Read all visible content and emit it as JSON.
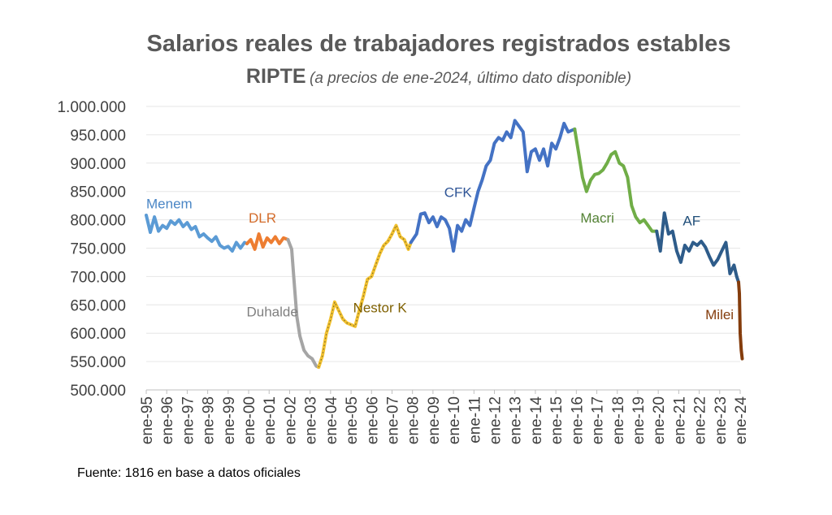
{
  "chart_data": {
    "type": "line",
    "title": "Salarios reales de trabajadores registrados estables",
    "subtitle_main": "RIPTE",
    "subtitle_note": "(a precios de ene-2024, último dato disponible)",
    "source": "Fuente: 1816 en base a datos oficiales",
    "ylim": [
      500000,
      1000000
    ],
    "y_ticks": [
      "1.000.000",
      "950.000",
      "900.000",
      "850.000",
      "800.000",
      "750.000",
      "700.000",
      "650.000",
      "600.000",
      "550.000",
      "500.000"
    ],
    "x_ticks": [
      "ene-95",
      "ene-96",
      "ene-97",
      "ene-98",
      "ene-99",
      "ene-00",
      "ene-01",
      "ene-02",
      "ene-03",
      "ene-04",
      "ene-05",
      "ene-06",
      "ene-07",
      "ene-08",
      "ene-09",
      "ene-10",
      "ene-11",
      "ene-12",
      "ene-13",
      "ene-14",
      "ene-15",
      "ene-16",
      "ene-17",
      "ene-18",
      "ene-19",
      "ene-20",
      "ene-21",
      "ene-22",
      "ene-23",
      "ene-24"
    ],
    "x_start_year": 1995,
    "series": [
      {
        "name": "Menem",
        "color": "#5B9BD5",
        "label_color": "#4A86C5",
        "x": [
          1995.0,
          1995.2,
          1995.4,
          1995.6,
          1995.8,
          1996.0,
          1996.2,
          1996.4,
          1996.6,
          1996.8,
          1997.0,
          1997.2,
          1997.4,
          1997.6,
          1997.8,
          1998.0,
          1998.2,
          1998.4,
          1998.6,
          1998.8,
          1999.0,
          1999.2,
          1999.4,
          1999.6,
          1999.8,
          1999.92
        ],
        "y": [
          808000,
          778000,
          805000,
          780000,
          790000,
          785000,
          798000,
          792000,
          800000,
          788000,
          795000,
          783000,
          788000,
          770000,
          775000,
          768000,
          762000,
          770000,
          755000,
          750000,
          753000,
          745000,
          760000,
          750000,
          760000,
          758000
        ]
      },
      {
        "name": "DLR",
        "color": "#ED7D31",
        "label_color": "#D36B2A",
        "x": [
          1999.92,
          2000.1,
          2000.3,
          2000.5,
          2000.7,
          2000.9,
          2001.1,
          2001.3,
          2001.5,
          2001.7,
          2001.92
        ],
        "y": [
          758000,
          765000,
          748000,
          775000,
          752000,
          768000,
          760000,
          770000,
          758000,
          768000,
          765000
        ]
      },
      {
        "name": "Duhalde",
        "color": "#A5A5A5",
        "label_color": "#808080",
        "x": [
          2001.92,
          2002.1,
          2002.2,
          2002.35,
          2002.5,
          2002.7,
          2002.9,
          2003.1,
          2003.3,
          2003.42
        ],
        "y": [
          765000,
          748000,
          700000,
          630000,
          595000,
          570000,
          560000,
          555000,
          542000,
          540000
        ]
      },
      {
        "name": "Nestor K",
        "color": "#F2C12E",
        "label_color": "#7F6000",
        "dotted": true,
        "x": [
          2003.42,
          2003.6,
          2003.8,
          2004.0,
          2004.2,
          2004.4,
          2004.6,
          2004.8,
          2005.0,
          2005.2,
          2005.4,
          2005.6,
          2005.8,
          2006.0,
          2006.2,
          2006.4,
          2006.6,
          2006.8,
          2007.0,
          2007.2,
          2007.4,
          2007.6,
          2007.8,
          2007.92
        ],
        "y": [
          540000,
          560000,
          600000,
          625000,
          655000,
          640000,
          625000,
          618000,
          615000,
          612000,
          640000,
          665000,
          695000,
          700000,
          720000,
          740000,
          755000,
          762000,
          775000,
          790000,
          770000,
          765000,
          748000,
          760000
        ]
      },
      {
        "name": "CFK",
        "color": "#4472C4",
        "label_color": "#2F5597",
        "x": [
          2007.92,
          2008.2,
          2008.4,
          2008.6,
          2008.8,
          2009.0,
          2009.2,
          2009.4,
          2009.6,
          2009.8,
          2010.0,
          2010.2,
          2010.4,
          2010.6,
          2010.8,
          2011.0,
          2011.2,
          2011.4,
          2011.6,
          2011.8,
          2012.0,
          2012.2,
          2012.4,
          2012.6,
          2012.8,
          2013.0,
          2013.2,
          2013.4,
          2013.6,
          2013.8,
          2014.0,
          2014.2,
          2014.4,
          2014.6,
          2014.8,
          2015.0,
          2015.2,
          2015.4,
          2015.6,
          2015.92
        ],
        "y": [
          760000,
          775000,
          810000,
          812000,
          795000,
          805000,
          788000,
          805000,
          800000,
          785000,
          745000,
          790000,
          780000,
          800000,
          790000,
          820000,
          850000,
          870000,
          895000,
          905000,
          935000,
          945000,
          940000,
          955000,
          945000,
          975000,
          965000,
          955000,
          885000,
          920000,
          925000,
          905000,
          925000,
          895000,
          935000,
          925000,
          945000,
          970000,
          955000,
          960000
        ]
      },
      {
        "name": "Macri",
        "color": "#70AD47",
        "label_color": "#548235",
        "x": [
          2015.92,
          2016.1,
          2016.3,
          2016.5,
          2016.7,
          2016.9,
          2017.1,
          2017.3,
          2017.5,
          2017.7,
          2017.9,
          2018.1,
          2018.3,
          2018.5,
          2018.7,
          2018.9,
          2019.1,
          2019.3,
          2019.5,
          2019.7,
          2019.92
        ],
        "y": [
          960000,
          920000,
          875000,
          850000,
          870000,
          880000,
          882000,
          888000,
          900000,
          915000,
          920000,
          900000,
          895000,
          875000,
          825000,
          805000,
          795000,
          800000,
          790000,
          780000,
          780000
        ]
      },
      {
        "name": "AF",
        "color": "#2E5C8A",
        "label_color": "#1F4E79",
        "x": [
          2019.92,
          2020.1,
          2020.3,
          2020.5,
          2020.7,
          2020.9,
          2021.1,
          2021.3,
          2021.5,
          2021.7,
          2021.9,
          2022.1,
          2022.3,
          2022.5,
          2022.7,
          2022.9,
          2023.1,
          2023.3,
          2023.5,
          2023.7,
          2023.83,
          2023.92
        ],
        "y": [
          780000,
          745000,
          812000,
          775000,
          780000,
          745000,
          725000,
          755000,
          745000,
          760000,
          755000,
          762000,
          752000,
          735000,
          720000,
          730000,
          745000,
          760000,
          705000,
          720000,
          700000,
          690000
        ]
      },
      {
        "name": "Milei",
        "color": "#843C0C",
        "label_color": "#843C0C",
        "x": [
          2023.92,
          2023.96,
          2024.0,
          2024.05,
          2024.1
        ],
        "y": [
          690000,
          670000,
          600000,
          570000,
          555000
        ]
      }
    ],
    "labels": [
      {
        "text": "Menem",
        "x": 1995.0,
        "y": 820000,
        "color": "#4A86C5"
      },
      {
        "text": "DLR",
        "x": 2000.0,
        "y": 795000,
        "color": "#D36B2A"
      },
      {
        "text": "Duhalde",
        "x": 1999.9,
        "y": 630000,
        "color": "#808080"
      },
      {
        "text": "Nestor K",
        "x": 2005.1,
        "y": 637000,
        "color": "#7F6000"
      },
      {
        "text": "CFK",
        "x": 2009.55,
        "y": 840000,
        "color": "#2F5597"
      },
      {
        "text": "Macri",
        "x": 2016.2,
        "y": 795000,
        "color": "#548235"
      },
      {
        "text": "AF",
        "x": 2021.2,
        "y": 790000,
        "color": "#1F4E79"
      },
      {
        "text": "Milei",
        "x": 2022.3,
        "y": 625000,
        "color": "#843C0C"
      }
    ]
  }
}
